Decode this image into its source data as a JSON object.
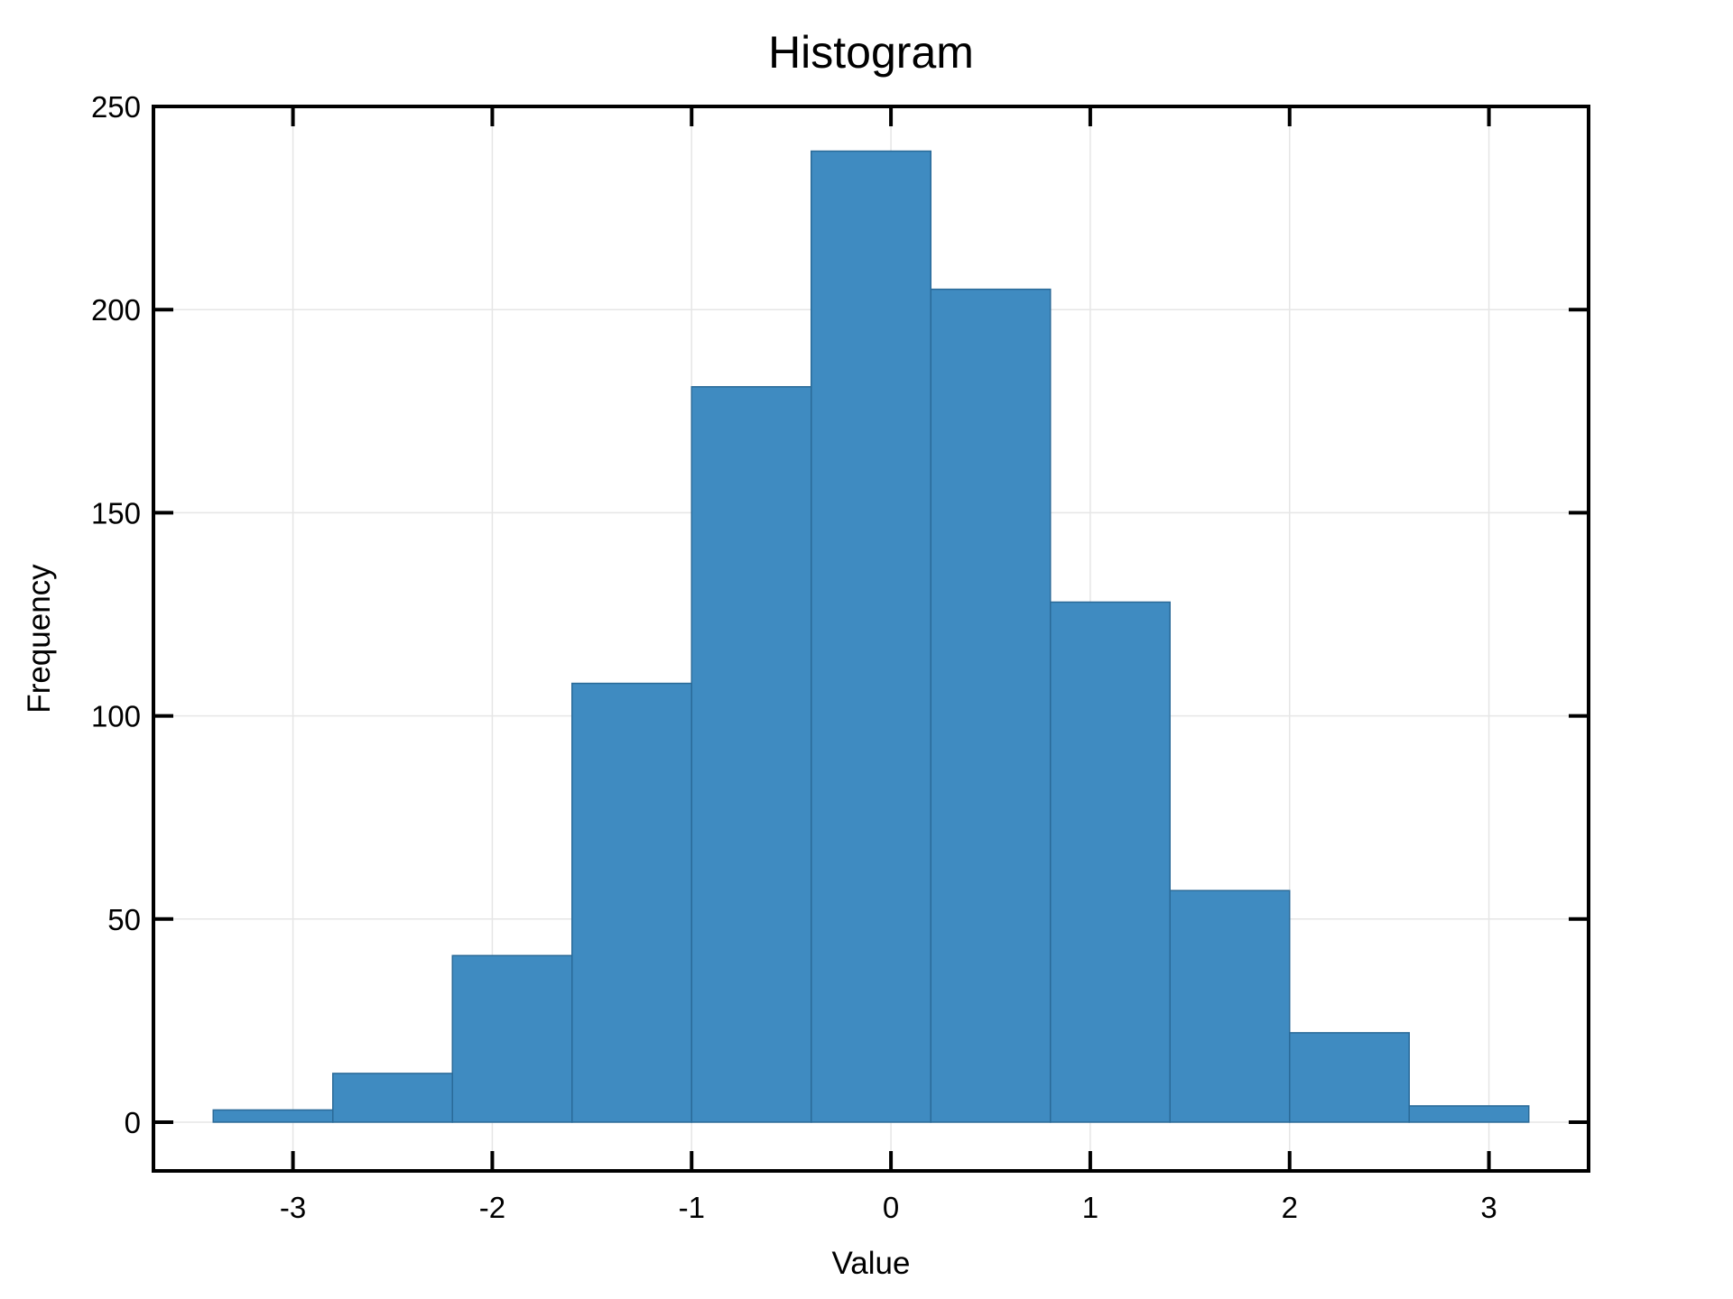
{
  "chart_data": {
    "type": "bar",
    "title": "Histogram",
    "xlabel": "Value",
    "ylabel": "Frequency",
    "xlim": [
      -3.7,
      3.5
    ],
    "ylim": [
      -12,
      250
    ],
    "xticks": [
      -3,
      -2,
      -1,
      0,
      1,
      2,
      3
    ],
    "xtick_labels": [
      "-3",
      "-2",
      "-1",
      "0",
      "1",
      "2",
      "3"
    ],
    "yticks": [
      0,
      50,
      100,
      150,
      200,
      250
    ],
    "ytick_labels": [
      "0",
      "50",
      "100",
      "150",
      "200",
      "250"
    ],
    "grid": true,
    "bins": [
      {
        "x0": -3.4,
        "x1": -2.8,
        "count": 3
      },
      {
        "x0": -2.8,
        "x1": -2.2,
        "count": 12
      },
      {
        "x0": -2.2,
        "x1": -1.6,
        "count": 41
      },
      {
        "x0": -1.6,
        "x1": -1.0,
        "count": 108
      },
      {
        "x0": -1.0,
        "x1": -0.4,
        "count": 181
      },
      {
        "x0": -0.4,
        "x1": 0.2,
        "count": 239
      },
      {
        "x0": 0.2,
        "x1": 0.8,
        "count": 205
      },
      {
        "x0": 0.8,
        "x1": 1.4,
        "count": 128
      },
      {
        "x0": 1.4,
        "x1": 2.0,
        "count": 57
      },
      {
        "x0": 2.0,
        "x1": 2.6,
        "count": 22
      },
      {
        "x0": 2.6,
        "x1": 3.2,
        "count": 4
      }
    ],
    "colors": {
      "bar_fill": "#3f8bc1",
      "bar_edge": "#2a6a98"
    }
  }
}
